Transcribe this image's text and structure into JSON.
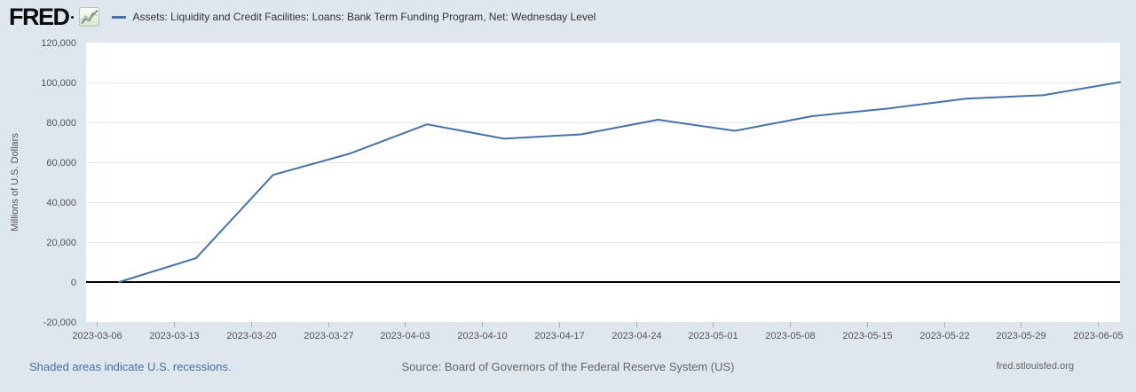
{
  "header": {
    "logo_text": "FRED",
    "series_title": "Assets: Liquidity and Credit Facilities: Loans: Bank Term Funding Program, Net: Wednesday Level"
  },
  "colors": {
    "background": "#dee6ee",
    "series_line": "#4572a7",
    "link_blue": "#4a6fa5",
    "muted_text": "#666666",
    "axis_text": "#555555",
    "gridline": "#e6e6e6",
    "zero_line": "#000000"
  },
  "chart_data": {
    "type": "line",
    "title": "Assets: Liquidity and Credit Facilities: Loans: Bank Term Funding Program, Net: Wednesday Level",
    "xlabel": "",
    "ylabel": "Millions of U.S. Dollars",
    "x": [
      "2023-03-08",
      "2023-03-15",
      "2023-03-22",
      "2023-03-29",
      "2023-04-05",
      "2023-04-12",
      "2023-04-19",
      "2023-04-26",
      "2023-05-03",
      "2023-05-10",
      "2023-05-17",
      "2023-05-24",
      "2023-05-31",
      "2023-06-07"
    ],
    "values": [
      0,
      11943,
      53669,
      64403,
      79021,
      71837,
      73982,
      81327,
      75778,
      83101,
      87006,
      91907,
      93615,
      100161
    ],
    "x_ticks": [
      "2023-03-06",
      "2023-03-13",
      "2023-03-20",
      "2023-03-27",
      "2023-04-03",
      "2023-04-10",
      "2023-04-17",
      "2023-04-24",
      "2023-05-01",
      "2023-05-08",
      "2023-05-15",
      "2023-05-22",
      "2023-05-29",
      "2023-06-05"
    ],
    "y_ticks": [
      -20000,
      0,
      20000,
      40000,
      60000,
      80000,
      100000,
      120000
    ],
    "xlim": [
      "2023-03-05",
      "2023-06-07"
    ],
    "ylim": [
      -20000,
      120000
    ],
    "grid": true,
    "zero_line": true,
    "legend_position": "top",
    "line_color": "#4572a7",
    "plot_background": "#ffffff"
  },
  "footer": {
    "recessions_note": "Shaded areas indicate U.S. recessions.",
    "source": "Source: Board of Governors of the Federal Reserve System (US)",
    "site": "fred.stlouisfed.org"
  }
}
